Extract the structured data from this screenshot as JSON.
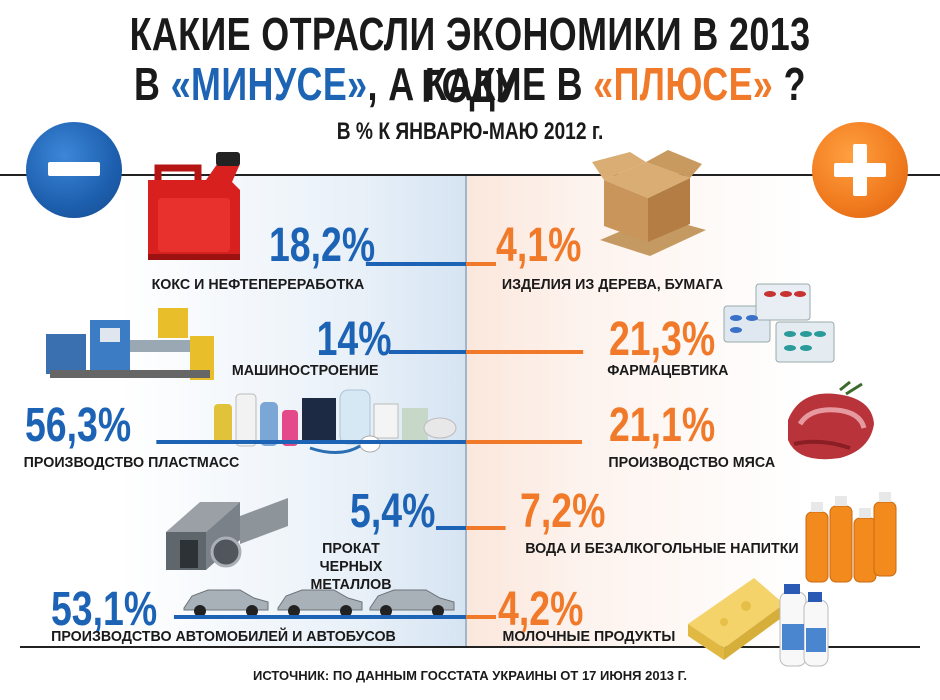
{
  "title": {
    "line1": "КАКИЕ ОТРАСЛИ ЭКОНОМИКИ В 2013 ГОДУ",
    "line2_pre": "В ",
    "line2_minus": "«МИНУСЕ»",
    "line2_mid": ", А КАКИЕ В ",
    "line2_plus": "«ПЛЮСЕ»",
    "line2_end": " ?"
  },
  "subtitle": "В % К ЯНВАРЮ-МАЮ 2012 г.",
  "source": "ИСТОЧНИК: ПО ДАННЫМ ГОССТАТА УКРАИНЫ ОТ 17 ИЮНЯ 2013 Г.",
  "colors": {
    "minus": "#1d63b5",
    "plus": "#f07a2a"
  },
  "icons": {
    "minus": "minus-sign-icon",
    "plus": "plus-sign-icon"
  },
  "chart_data": {
    "type": "bar",
    "title": "КАКИЕ ОТРАСЛИ ЭКОНОМИКИ В 2013 ГОДУ В «МИНУСЕ», А КАКИЕ В «ПЛЮСЕ» ?",
    "subtitle": "В % К ЯНВАРЮ-МАЮ 2012 г.",
    "unit": "%",
    "series": [
      {
        "name": "«МИНУСЕ»",
        "sign": "minus",
        "items": [
          {
            "category": "КОКС И НЕФТЕПЕРЕРАБОТКА",
            "value": 18.2,
            "label": "18,2%",
            "icon": "fuel-canister-icon"
          },
          {
            "category": "МАШИНОСТРОЕНИЕ",
            "value": 14,
            "label": "14%",
            "icon": "machine-icon"
          },
          {
            "category": "ПРОИЗВОДСТВО ПЛАСТМАСС",
            "value": 56.3,
            "label": "56,3%",
            "icon": "plastic-goods-icon"
          },
          {
            "category": "ПРОКАТ ЧЕРНЫХ\nМЕТАЛЛОВ",
            "value": 5.4,
            "label": "5,4%",
            "icon": "steel-profiles-icon"
          },
          {
            "category": "ПРОИЗВОДСТВО АВТОМОБИЛЕЙ И АВТОБУСОВ",
            "value": 53.1,
            "label": "53,1%",
            "icon": "cars-icon"
          }
        ]
      },
      {
        "name": "«ПЛЮСЕ»",
        "sign": "plus",
        "items": [
          {
            "category": "ИЗДЕЛИЯ ИЗ ДЕРЕВА, БУМАГА",
            "value": 4.1,
            "label": "4,1%",
            "icon": "cardboard-box-icon"
          },
          {
            "category": "ФАРМАЦЕВТИКА",
            "value": 21.3,
            "label": "21,3%",
            "icon": "pills-icon"
          },
          {
            "category": "ПРОИЗВОДСТВО МЯСА",
            "value": 21.1,
            "label": "21,1%",
            "icon": "meat-icon"
          },
          {
            "category": "ВОДА И БЕЗАЛКОГОЛЬНЫЕ НАПИТКИ",
            "value": 7.2,
            "label": "7,2%",
            "icon": "bottles-icon"
          },
          {
            "category": "МОЛОЧНЫЕ ПРОДУКТЫ",
            "value": 4.2,
            "label": "4,2%",
            "icon": "dairy-icon"
          }
        ]
      }
    ]
  }
}
